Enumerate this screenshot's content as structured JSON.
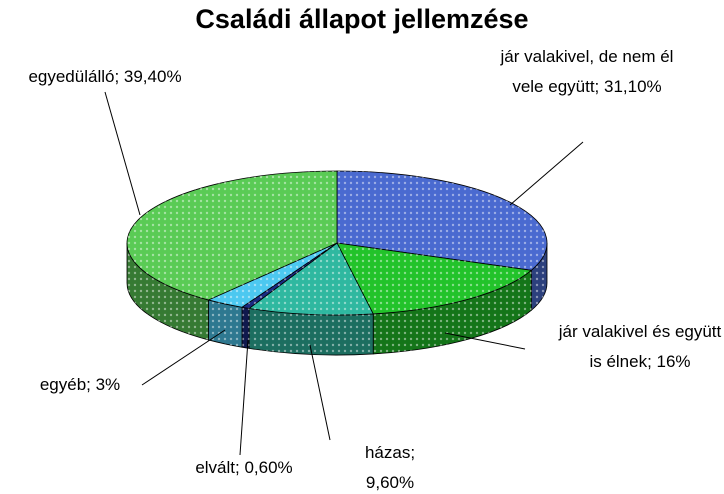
{
  "chart_data": {
    "type": "pie3d",
    "title": "Családi állapot jellemzése",
    "values": [
      31.1,
      16,
      9.6,
      0.6,
      3,
      39.4
    ],
    "value_labels": [
      "jár valakivel, de nem él vele együtt; 31,10%",
      "jár valakivel és együtt is élnek; 16%",
      "házas; 9,60%",
      "elvált; 0,60%",
      "egyéb; 3%",
      "egyedülálló; 39,40%"
    ],
    "colors": [
      "#4a6ad0",
      "#22c32a",
      "#2fb8a0",
      "#1a2a80",
      "#4cc8f0",
      "#5acb55"
    ]
  }
}
